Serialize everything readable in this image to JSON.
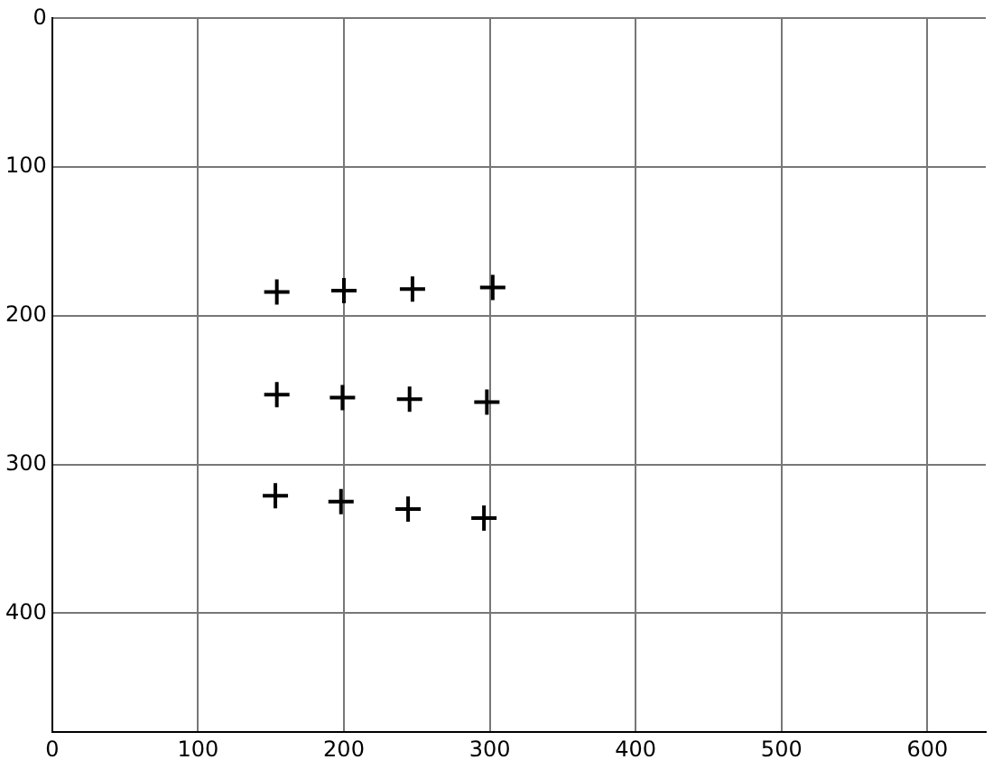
{
  "chart_data": {
    "type": "scatter",
    "marker": "cross",
    "grid": true,
    "legend": false,
    "xlim": [
      0,
      640
    ],
    "xticks": [
      0,
      100,
      200,
      300,
      400,
      500,
      600
    ],
    "ylim": [
      480,
      0
    ],
    "yticks": [
      0,
      100,
      200,
      300,
      400
    ],
    "series": [
      {
        "color": "#000000",
        "x": [
          154,
          200,
          247,
          302,
          154,
          199,
          245,
          298,
          153,
          198,
          244,
          296
        ],
        "values": [
          184,
          183,
          182,
          181,
          253,
          255,
          256,
          258,
          321,
          325,
          330,
          336
        ]
      }
    ]
  }
}
